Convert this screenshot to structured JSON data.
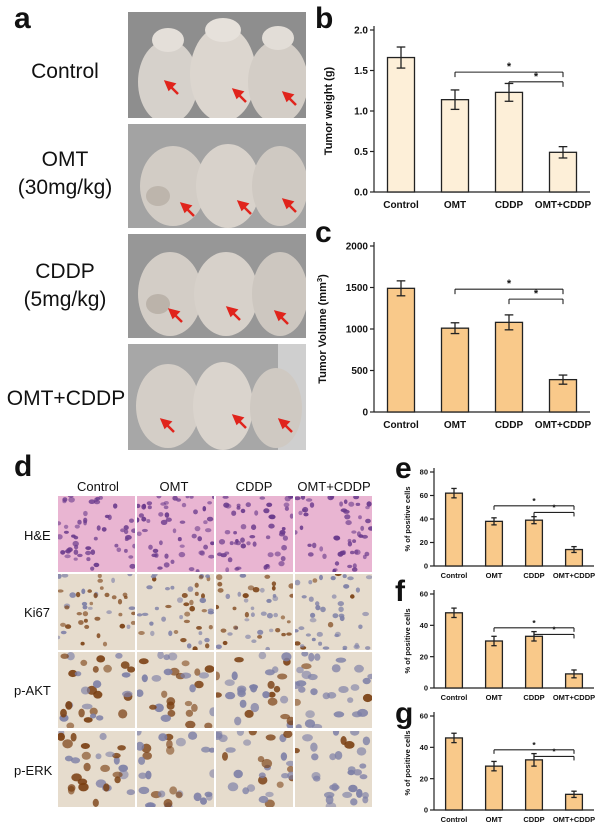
{
  "panels": {
    "a": "a",
    "b": "b",
    "c": "c",
    "d": "d",
    "e": "e",
    "f": "f",
    "g": "g"
  },
  "panel_a": {
    "rows": [
      {
        "label_lines": [
          "Control"
        ]
      },
      {
        "label_lines": [
          "OMT",
          "(30mg/kg)"
        ]
      },
      {
        "label_lines": [
          "CDDP",
          "(5mg/kg)"
        ]
      },
      {
        "label_lines": [
          "OMT+CDDP"
        ]
      }
    ]
  },
  "panel_d": {
    "columns": [
      "Control",
      "OMT",
      "CDDP",
      "OMT+CDDP"
    ],
    "rows": [
      "H&E",
      "Ki67",
      "p-AKT",
      "p-ERK"
    ],
    "colors": {
      "he_bg": "#e9b5d2",
      "he_nucleus": "#6a3a8c",
      "ihc_bg": "#e6dccd",
      "ihc_pos": "#7a3f12",
      "ihc_neg": "#7d7fa6"
    }
  },
  "significance": "*",
  "chart_data": [
    {
      "id": "b",
      "type": "bar",
      "categories": [
        "Control",
        "OMT",
        "CDDP",
        "OMT+CDDP"
      ],
      "values": [
        1.66,
        1.14,
        1.23,
        0.49
      ],
      "errors": [
        0.13,
        0.12,
        0.11,
        0.07
      ],
      "ylabel": "Tumor weight (g)",
      "ylim": [
        0,
        2.0
      ],
      "yticks": [
        "0.0",
        "0.5",
        "1.0",
        "1.5",
        "2.0"
      ],
      "bar_color": "#fdefd8"
    },
    {
      "id": "c",
      "type": "bar",
      "categories": [
        "Control",
        "OMT",
        "CDDP",
        "OMT+CDDP"
      ],
      "values": [
        1490,
        1010,
        1080,
        390
      ],
      "errors": [
        90,
        65,
        90,
        55
      ],
      "ylabel": "Tumor Volume (mm",
      "ylabel_sup": "3",
      "ylabel_end": ")",
      "ylim": [
        0,
        2000
      ],
      "yticks": [
        "0",
        "500",
        "1000",
        "1500",
        "2000"
      ],
      "bar_color": "#f9c98a"
    },
    {
      "id": "e",
      "type": "bar",
      "categories": [
        "Control",
        "OMT",
        "CDDP",
        "OMT+CDDP"
      ],
      "values": [
        62,
        38,
        39,
        14
      ],
      "errors": [
        4,
        3,
        3,
        2.5
      ],
      "ylabel": "% of positive cells",
      "ylim": [
        0,
        80
      ],
      "yticks": [
        "0",
        "20",
        "40",
        "60",
        "80"
      ],
      "bar_color": "#f9c98a"
    },
    {
      "id": "f",
      "type": "bar",
      "categories": [
        "Control",
        "OMT",
        "CDDP",
        "OMT+CDDP"
      ],
      "values": [
        48,
        30,
        33,
        9
      ],
      "errors": [
        3,
        3,
        3,
        2.5
      ],
      "ylabel": "% of positive cells",
      "ylim": [
        0,
        60
      ],
      "yticks": [
        "0",
        "20",
        "40",
        "60"
      ],
      "bar_color": "#f9c98a"
    },
    {
      "id": "g",
      "type": "bar",
      "categories": [
        "Control",
        "OMT",
        "CDDP",
        "OMT+CDDP"
      ],
      "values": [
        46,
        28,
        32,
        10
      ],
      "errors": [
        3,
        3,
        4,
        2
      ],
      "ylabel": "% of positive cells",
      "ylim": [
        0,
        60
      ],
      "yticks": [
        "0",
        "20",
        "40",
        "60"
      ],
      "bar_color": "#f9c98a"
    }
  ]
}
